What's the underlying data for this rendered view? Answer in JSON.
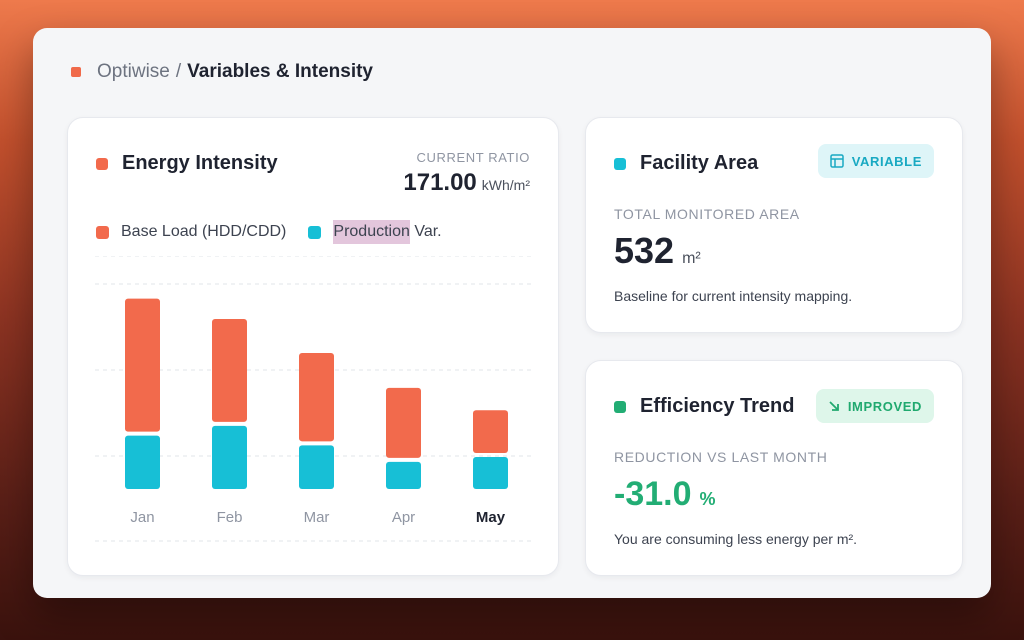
{
  "breadcrumb": {
    "app": "Optiwise",
    "separator": "/",
    "page": "Variables & Intensity"
  },
  "colors": {
    "base_load": "#f26a4c",
    "production": "#17bfd6",
    "trend": "#22ad74",
    "breadcrumb_accent": "#f06a4a"
  },
  "energy_card": {
    "title": "Energy Intensity",
    "ratio_label": "CURRENT RATIO",
    "ratio_value": "171.00",
    "ratio_unit": "kWh/m²",
    "legend": [
      {
        "label": "Base Load (HDD/CDD)",
        "icon": "orange-square"
      },
      {
        "label": "Production",
        "suffix": "Var.",
        "icon": "teal-square"
      }
    ]
  },
  "area_card": {
    "title": "Facility Area",
    "badge": "VARIABLE",
    "badge_icon": "table-icon",
    "stat_label": "TOTAL MONITORED AREA",
    "value": "532",
    "unit": "m²",
    "description": "Baseline for current intensity mapping."
  },
  "trend_card": {
    "title": "Efficiency Trend",
    "badge": "IMPROVED",
    "badge_icon": "arrow-down-right-icon",
    "stat_label": "REDUCTION VS LAST MONTH",
    "value": "-31.0",
    "unit": "%",
    "description": "You are consuming less energy per m²."
  },
  "chart_data": {
    "type": "bar",
    "stacked": true,
    "categories": [
      "Jan",
      "Feb",
      "Mar",
      "Apr",
      "May"
    ],
    "active_category": "May",
    "series": [
      {
        "name": "Production Var.",
        "values": [
          55,
          65,
          45,
          28,
          33
        ]
      },
      {
        "name": "Base Load (HDD/CDD)",
        "values": [
          137,
          106,
          91,
          72,
          44
        ]
      }
    ],
    "ylim": [
      0,
      240
    ],
    "grid": true
  }
}
